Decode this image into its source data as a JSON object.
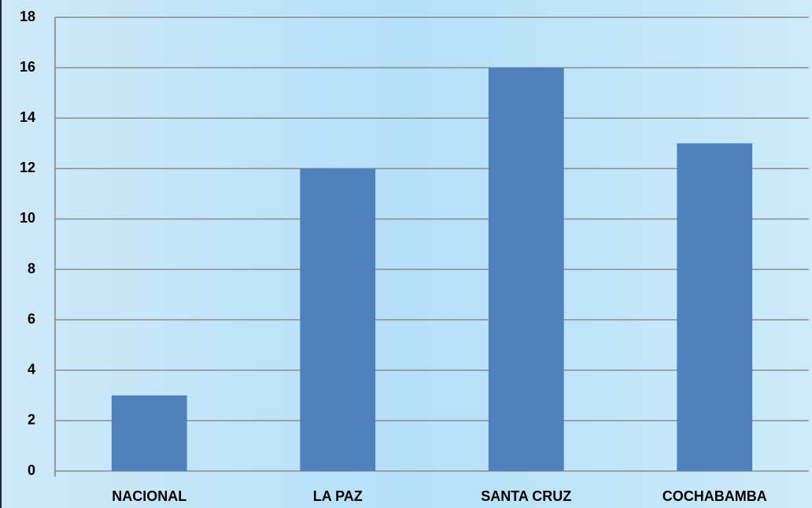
{
  "chart_data": {
    "type": "bar",
    "categories": [
      "NACIONAL",
      "LA PAZ",
      "SANTA CRUZ",
      "COCHABAMBA"
    ],
    "values": [
      3,
      12,
      16,
      13
    ],
    "color": "#4f81bd",
    "ylim": [
      0,
      18
    ],
    "yticks": [
      0,
      2,
      4,
      6,
      8,
      10,
      12,
      14,
      16,
      18
    ],
    "grid": true
  }
}
